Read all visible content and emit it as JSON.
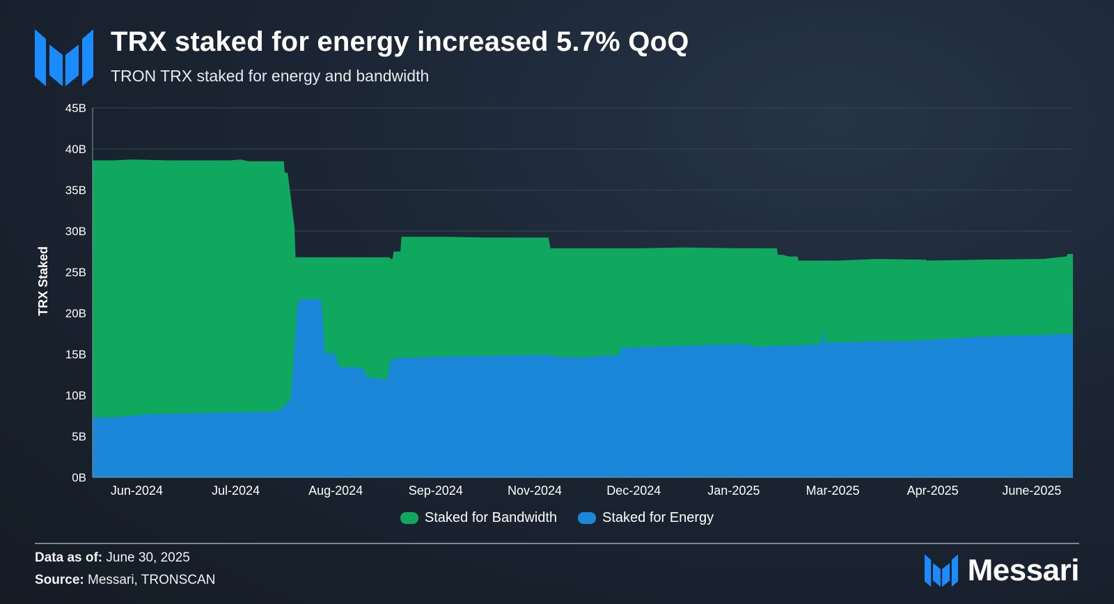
{
  "header": {
    "title": "TRX staked for energy increased 5.7% QoQ",
    "subtitle": "TRON TRX staked for energy and bandwidth"
  },
  "chart_data": {
    "type": "area",
    "stacked": true,
    "title": "TRX staked for energy increased 5.7% QoQ",
    "subtitle": "TRON TRX staked for energy and bandwidth",
    "xlabel": "",
    "ylabel": "TRX Staked",
    "ylim": [
      0,
      45
    ],
    "y_unit": "B",
    "yticks": [
      "0B",
      "5B",
      "10B",
      "15B",
      "20B",
      "25B",
      "30B",
      "35B",
      "40B",
      "45B"
    ],
    "x_ticks": [
      "Jun-2024",
      "Jul-2024",
      "Aug-2024",
      "Sep-2024",
      "Nov-2024",
      "Dec-2024",
      "Jan-2025",
      "Mar-2025",
      "Apr-2025",
      "June-2025"
    ],
    "x_range": [
      0,
      100
    ],
    "x_tick_positions": [
      4.5,
      14.6,
      24.8,
      35.0,
      45.1,
      55.2,
      65.4,
      75.5,
      85.7,
      95.8
    ],
    "grid": true,
    "legend_position": "bottom-center",
    "series": [
      {
        "name": "Staked for Energy",
        "color": "#1a87d9",
        "points": [
          [
            0,
            7.3
          ],
          [
            2,
            7.3
          ],
          [
            4,
            7.5
          ],
          [
            6,
            7.7
          ],
          [
            10,
            7.8
          ],
          [
            14,
            7.9
          ],
          [
            18,
            8.0
          ],
          [
            19,
            8.1
          ],
          [
            19.4,
            8.5
          ],
          [
            19.9,
            9.2
          ],
          [
            20.2,
            9.4
          ],
          [
            20.5,
            14
          ],
          [
            20.9,
            21.2
          ],
          [
            21.2,
            21.7
          ],
          [
            23.3,
            21.7
          ],
          [
            23.5,
            19
          ],
          [
            23.7,
            15.1
          ],
          [
            24.6,
            15.1
          ],
          [
            24.8,
            14.7
          ],
          [
            25.2,
            13.4
          ],
          [
            26.5,
            13.4
          ],
          [
            27.7,
            13.2
          ],
          [
            28.0,
            12.2
          ],
          [
            29.3,
            12.0
          ],
          [
            30.1,
            12.0
          ],
          [
            30.4,
            14.3
          ],
          [
            31,
            14.5
          ],
          [
            35,
            14.7
          ],
          [
            40,
            14.8
          ],
          [
            44,
            14.9
          ],
          [
            47,
            14.9
          ],
          [
            47.1,
            14.7
          ],
          [
            50,
            14.6
          ],
          [
            52,
            14.8
          ],
          [
            53.8,
            14.9
          ],
          [
            53.9,
            15.8
          ],
          [
            60,
            16.0
          ],
          [
            65,
            16.2
          ],
          [
            66.9,
            16.2
          ],
          [
            67.3,
            15.9
          ],
          [
            72,
            16.1
          ],
          [
            74,
            16.2
          ],
          [
            74.3,
            16.2
          ],
          [
            74.5,
            18.2
          ],
          [
            74.7,
            16.4
          ],
          [
            78,
            16.5
          ],
          [
            80,
            16.6
          ],
          [
            83,
            16.6
          ],
          [
            86,
            16.8
          ],
          [
            89,
            17.0
          ],
          [
            92,
            17.2
          ],
          [
            96,
            17.3
          ],
          [
            100,
            17.5
          ]
        ]
      },
      {
        "name": "Staked for Bandwidth",
        "color": "#0fa85e",
        "total_points": [
          [
            0,
            38.6
          ],
          [
            2,
            38.6
          ],
          [
            4,
            38.7
          ],
          [
            8,
            38.6
          ],
          [
            14,
            38.6
          ],
          [
            15.1,
            38.7
          ],
          [
            15.9,
            38.5
          ],
          [
            19.5,
            38.5
          ],
          [
            19.6,
            37.1
          ],
          [
            19.9,
            37.1
          ],
          [
            20.6,
            30.5
          ],
          [
            20.7,
            26.8
          ],
          [
            24,
            26.8
          ],
          [
            30.3,
            26.8
          ],
          [
            30.4,
            26.6
          ],
          [
            30.6,
            26.6
          ],
          [
            30.7,
            27.5
          ],
          [
            31.4,
            27.5
          ],
          [
            31.5,
            29.3
          ],
          [
            36,
            29.3
          ],
          [
            40,
            29.2
          ],
          [
            44,
            29.2
          ],
          [
            46.5,
            29.2
          ],
          [
            46.7,
            27.9
          ],
          [
            50,
            27.9
          ],
          [
            56,
            27.9
          ],
          [
            60,
            28.0
          ],
          [
            66,
            27.9
          ],
          [
            69.8,
            27.9
          ],
          [
            69.9,
            27.1
          ],
          [
            70.4,
            27.1
          ],
          [
            71,
            26.9
          ],
          [
            71.9,
            26.9
          ],
          [
            72,
            26.4
          ],
          [
            76,
            26.4
          ],
          [
            80,
            26.6
          ],
          [
            85,
            26.5
          ],
          [
            85.1,
            26.4
          ],
          [
            90,
            26.5
          ],
          [
            97,
            26.6
          ],
          [
            98.5,
            26.8
          ],
          [
            99.3,
            26.9
          ],
          [
            99.5,
            27.2
          ],
          [
            100,
            27.2
          ]
        ]
      }
    ]
  },
  "legend": {
    "items": [
      {
        "label": "Staked for Bandwidth",
        "color": "#0fa85e"
      },
      {
        "label": "Staked for Energy",
        "color": "#1a87d9"
      }
    ]
  },
  "footer": {
    "data_as_of_label": "Data as of:",
    "data_as_of_value": " June 30, 2025",
    "source_label": "Source:",
    "source_value": " Messari, TRONSCAN"
  },
  "brand": {
    "name": "Messari",
    "logo_icon": "messari-logo-icon",
    "color": "#1a8cff"
  }
}
